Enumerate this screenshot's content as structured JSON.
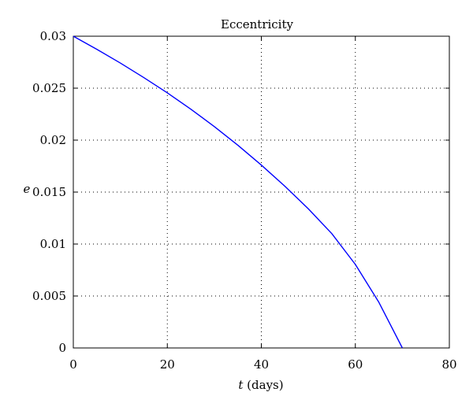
{
  "chart_data": {
    "type": "line",
    "title": "Eccentricity",
    "xlabel_var": "t",
    "xlabel_unit": " (days)",
    "ylabel": "e",
    "xlim": [
      0,
      80
    ],
    "ylim": [
      0,
      0.03
    ],
    "xticks": [
      0,
      20,
      40,
      60,
      80
    ],
    "xtick_labels": [
      "0",
      "20",
      "40",
      "60",
      "80"
    ],
    "yticks": [
      0,
      0.005,
      0.01,
      0.015,
      0.02,
      0.025,
      0.03
    ],
    "ytick_labels": [
      "0",
      "0.005",
      "0.01",
      "0.015",
      "0.02",
      "0.025",
      "0.03"
    ],
    "grid": true,
    "series": [
      {
        "color": "#0000ff",
        "x": [
          0,
          5,
          10,
          15,
          20,
          25,
          30,
          35,
          40,
          45,
          50,
          55,
          60,
          65,
          70
        ],
        "y": [
          0.03,
          0.02874,
          0.02742,
          0.02602,
          0.02455,
          0.02298,
          0.0213,
          0.01951,
          0.0176,
          0.01557,
          0.01339,
          0.011,
          0.00804,
          0.0044,
          0.0
        ]
      }
    ]
  }
}
